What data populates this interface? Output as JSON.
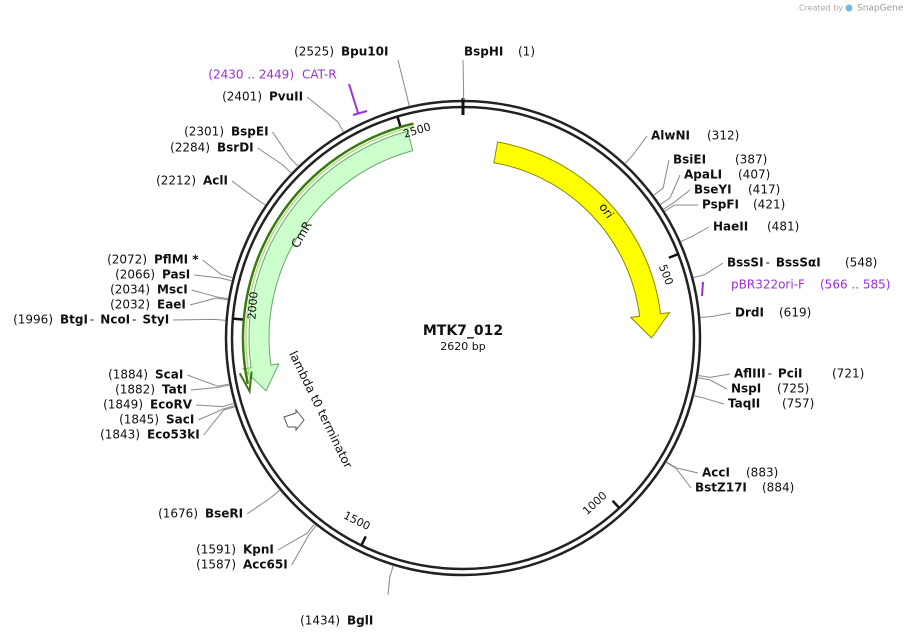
{
  "created_by": "Created by",
  "brand": "SnapGene",
  "plasmid": {
    "name": "MTK7_012",
    "length_label": "2620 bp",
    "length": 2620
  },
  "ticks": [
    500,
    1000,
    1500,
    2000,
    2500
  ],
  "name_separator": "-",
  "enzymes": [
    {
      "names": [
        "BspHI"
      ],
      "position": {
        "value": 1,
        "label": "(1)"
      }
    },
    {
      "names": [
        "AlwNI"
      ],
      "position": {
        "value": 312,
        "label": "(312)"
      }
    },
    {
      "names": [
        "BsiEI"
      ],
      "position": {
        "value": 387,
        "label": "(387)"
      }
    },
    {
      "names": [
        "ApaLI"
      ],
      "position": {
        "value": 407,
        "label": "(407)"
      }
    },
    {
      "names": [
        "BseYI"
      ],
      "position": {
        "value": 417,
        "label": "(417)"
      }
    },
    {
      "names": [
        "PspFI"
      ],
      "position": {
        "value": 421,
        "label": "(421)"
      }
    },
    {
      "names": [
        "HaeII"
      ],
      "position": {
        "value": 481,
        "label": "(481)"
      }
    },
    {
      "names": [
        "BssSI",
        "BssSαI"
      ],
      "position": {
        "value": 548,
        "label": "(548)"
      }
    },
    {
      "names": [
        "DrdI"
      ],
      "position": {
        "value": 619,
        "label": "(619)"
      }
    },
    {
      "names": [
        "AflIII",
        "PciI"
      ],
      "position": {
        "value": 721,
        "label": "(721)"
      }
    },
    {
      "names": [
        "NspI"
      ],
      "position": {
        "value": 725,
        "label": "(725)"
      }
    },
    {
      "names": [
        "TaqII"
      ],
      "position": {
        "value": 757,
        "label": "(757)"
      }
    },
    {
      "names": [
        "AccI"
      ],
      "position": {
        "value": 883,
        "label": "(883)"
      }
    },
    {
      "names": [
        "BstZ17I"
      ],
      "position": {
        "value": 884,
        "label": "(884)"
      }
    },
    {
      "names": [
        "BglI"
      ],
      "position": {
        "value": 1434,
        "label": "(1434)"
      }
    },
    {
      "names": [
        "Acc65I"
      ],
      "position": {
        "value": 1587,
        "label": "(1587)"
      }
    },
    {
      "names": [
        "KpnI"
      ],
      "position": {
        "value": 1591,
        "label": "(1591)"
      }
    },
    {
      "names": [
        "BseRI"
      ],
      "position": {
        "value": 1676,
        "label": "(1676)"
      }
    },
    {
      "names": [
        "Eco53kI"
      ],
      "position": {
        "value": 1843,
        "label": "(1843)"
      }
    },
    {
      "names": [
        "SacI"
      ],
      "position": {
        "value": 1845,
        "label": "(1845)"
      }
    },
    {
      "names": [
        "EcoRV"
      ],
      "position": {
        "value": 1849,
        "label": "(1849)"
      }
    },
    {
      "names": [
        "TatI"
      ],
      "position": {
        "value": 1882,
        "label": "(1882)"
      }
    },
    {
      "names": [
        "ScaI"
      ],
      "position": {
        "value": 1884,
        "label": "(1884)"
      }
    },
    {
      "names": [
        "BtgI",
        "NcoI",
        "StyI"
      ],
      "position": {
        "value": 1996,
        "label": "(1996)"
      }
    },
    {
      "names": [
        "EaeI"
      ],
      "position": {
        "value": 2032,
        "label": "(2032)"
      }
    },
    {
      "names": [
        "MscI"
      ],
      "position": {
        "value": 2034,
        "label": "(2034)"
      }
    },
    {
      "names": [
        "PasI"
      ],
      "position": {
        "value": 2066,
        "label": "(2066)"
      }
    },
    {
      "names": [
        "PflMI *"
      ],
      "position": {
        "value": 2072,
        "label": "(2072)"
      }
    },
    {
      "names": [
        "AclI"
      ],
      "position": {
        "value": 2212,
        "label": "(2212)"
      }
    },
    {
      "names": [
        "BsrDI"
      ],
      "position": {
        "value": 2284,
        "label": "(2284)"
      }
    },
    {
      "names": [
        "BspEI"
      ],
      "position": {
        "value": 2301,
        "label": "(2301)"
      }
    },
    {
      "names": [
        "PvuII"
      ],
      "position": {
        "value": 2401,
        "label": "(2401)"
      }
    },
    {
      "names": [
        "Bpu10I"
      ],
      "position": {
        "value": 2525,
        "label": "(2525)"
      }
    }
  ],
  "features": [
    {
      "name": "ori"
    },
    {
      "name": "CmR"
    },
    {
      "name": "lambda t0 terminator"
    }
  ],
  "primers": [
    {
      "name": "CAT-R",
      "range": "(2430 .. 2449)"
    },
    {
      "name": "pBR322ori-F",
      "range": "(566 .. 585)"
    }
  ]
}
